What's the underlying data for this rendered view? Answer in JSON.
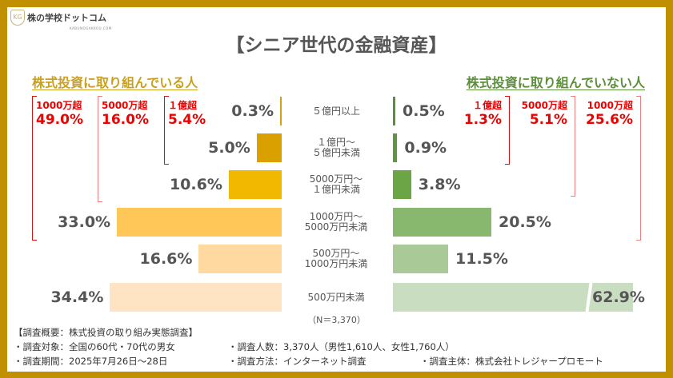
{
  "logo": {
    "name": "株の学校ドットコム",
    "sub": "KABUNOGAKKOU.COM",
    "mark": "KG"
  },
  "title": "【シニア世代の金融資産】",
  "left_heading": "株式投資に取り組んでいる人",
  "right_heading": "株式投資に取り組んでいない人",
  "chart_data": {
    "type": "bar",
    "categories": [
      "５億円以上",
      "１億円～\n５億円未満",
      "5000万円～\n１億円未満",
      "1000万円～\n5000万円未満",
      "500万円～\n1000万円未満",
      "500万円未満"
    ],
    "series": [
      {
        "name": "株式投資に取り組んでいる人",
        "values": [
          0.3,
          5.0,
          10.6,
          33.0,
          16.6,
          34.4
        ],
        "labels": [
          "0.3%",
          "5.0%",
          "10.6%",
          "33.0%",
          "16.6%",
          "34.4%"
        ],
        "colors": [
          "#D4A017",
          "#D9A000",
          "#F2B800",
          "#FFC658",
          "#FFD9A0",
          "#FFE4C4"
        ]
      },
      {
        "name": "株式投資に取り組んでいない人",
        "values": [
          0.5,
          0.9,
          3.8,
          20.5,
          11.5,
          62.9
        ],
        "labels": [
          "0.5%",
          "0.9%",
          "3.8%",
          "20.5%",
          "11.5%",
          "62.9%"
        ],
        "colors": [
          "#5B8F3A",
          "#5E9640",
          "#6BA545",
          "#88B86E",
          "#A9CA96",
          "#C9DDC0"
        ]
      }
    ],
    "orientation": "horizontal-butterfly",
    "truncated_bar": "62.9%"
  },
  "left_totals": [
    {
      "label": "1000万超",
      "value": "49.0%"
    },
    {
      "label": "5000万超",
      "value": "16.0%"
    },
    {
      "label": "１億超",
      "value": "5.4%"
    }
  ],
  "right_totals": [
    {
      "label": "１億超",
      "value": "1.3%"
    },
    {
      "label": "5000万超",
      "value": "5.1%"
    },
    {
      "label": "1000万超",
      "value": "25.6%"
    }
  ],
  "n": "（N＝3,370）",
  "footer": {
    "heading": "【調査概要：株式投資の取り組み実態調査】",
    "target": "・調査対象：全国の60代・70代の男女",
    "count": "・調査人数：3,370人（男性1,610人、女性1,760人）",
    "period": "・調査期間：2025年7月26日～28日",
    "method": "・調査方法：インターネット調査",
    "org": "・調査主体：株式会社トレジャープロモート"
  }
}
